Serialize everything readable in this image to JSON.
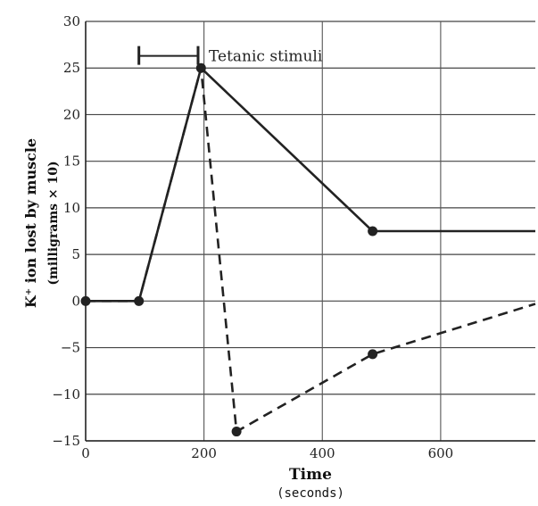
{
  "chart_data": {
    "type": "line",
    "xlabel": "Time",
    "xlabel_unit": "(seconds)",
    "ylabel": "K⁺ ion lost by muscle",
    "ylabel_unit": "(milligrams × 10)",
    "xlim": [
      0,
      760
    ],
    "ylim": [
      -15,
      30
    ],
    "x_ticks": [
      0,
      200,
      400,
      600
    ],
    "y_ticks": [
      30,
      25,
      20,
      15,
      10,
      5,
      0,
      -5,
      -10,
      -15
    ],
    "y_tick_labels": [
      "30",
      "25",
      "20",
      "15",
      "10",
      "5",
      "0",
      "−5",
      "−10",
      "−15"
    ],
    "grid": true,
    "annotation": {
      "text": "Tetanic stimuli",
      "x_start": 90,
      "x_end": 190,
      "y": 26.3
    },
    "series": [
      {
        "style": "solid",
        "points": [
          [
            0,
            0
          ],
          [
            90,
            0
          ],
          [
            195,
            25
          ],
          [
            485,
            7.5
          ],
          [
            760,
            7.5
          ]
        ],
        "markers": [
          [
            0,
            0
          ],
          [
            90,
            0
          ],
          [
            195,
            25
          ],
          [
            485,
            7.5
          ]
        ]
      },
      {
        "style": "dashed",
        "points": [
          [
            0,
            0
          ],
          [
            90,
            0
          ],
          [
            195,
            25
          ],
          [
            255,
            -14
          ],
          [
            485,
            -5.7
          ],
          [
            760,
            -0.3
          ]
        ],
        "markers": [
          [
            255,
            -14
          ],
          [
            485,
            -5.7
          ]
        ]
      }
    ]
  }
}
